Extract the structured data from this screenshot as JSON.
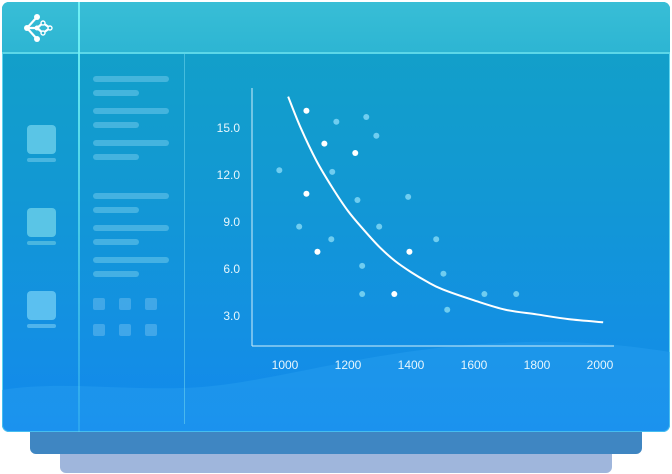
{
  "colors": {
    "accent": "#ffffff",
    "point_faint": "#6fcdf0",
    "header": "#35bcd5",
    "body": "#1399d4"
  },
  "sidebar": {
    "logo_icon": "network-nodes-icon",
    "items": [
      {
        "icon": "square-icon"
      },
      {
        "icon": "square-icon"
      },
      {
        "icon": "square-icon"
      }
    ]
  },
  "chart_data": {
    "type": "scatter",
    "title": "",
    "xlabel": "",
    "ylabel": "",
    "xlim": [
      920,
      2010
    ],
    "ylim": [
      0.8,
      17.5
    ],
    "x_ticks": [
      1000,
      1200,
      1400,
      1600,
      1800,
      2000
    ],
    "x_tick_labels": [
      "1000",
      "1200",
      "1400",
      "1600",
      "1800",
      "2000"
    ],
    "y_ticks": [
      3,
      6,
      9,
      12,
      15
    ],
    "y_tick_labels": [
      "3.0",
      "6.0",
      "9.0",
      "12.0",
      "15.0"
    ],
    "grid": false,
    "points": [
      {
        "x": 982,
        "y": 12.3,
        "highlight": false
      },
      {
        "x": 1068,
        "y": 16.1,
        "highlight": true
      },
      {
        "x": 1163,
        "y": 15.4,
        "highlight": false
      },
      {
        "x": 1258,
        "y": 15.7,
        "highlight": false
      },
      {
        "x": 1290,
        "y": 14.5,
        "highlight": false
      },
      {
        "x": 1125,
        "y": 14.0,
        "highlight": true
      },
      {
        "x": 1223,
        "y": 13.4,
        "highlight": true
      },
      {
        "x": 1150,
        "y": 12.2,
        "highlight": false
      },
      {
        "x": 1068,
        "y": 10.8,
        "highlight": true
      },
      {
        "x": 1230,
        "y": 10.4,
        "highlight": false
      },
      {
        "x": 1391,
        "y": 10.6,
        "highlight": false
      },
      {
        "x": 1045,
        "y": 8.7,
        "highlight": false
      },
      {
        "x": 1299,
        "y": 8.7,
        "highlight": false
      },
      {
        "x": 1147,
        "y": 7.9,
        "highlight": false
      },
      {
        "x": 1480,
        "y": 7.9,
        "highlight": false
      },
      {
        "x": 1103,
        "y": 7.1,
        "highlight": true
      },
      {
        "x": 1395,
        "y": 7.1,
        "highlight": true
      },
      {
        "x": 1245,
        "y": 6.2,
        "highlight": false
      },
      {
        "x": 1503,
        "y": 5.7,
        "highlight": false
      },
      {
        "x": 1245,
        "y": 4.4,
        "highlight": false
      },
      {
        "x": 1347,
        "y": 4.4,
        "highlight": true
      },
      {
        "x": 1633,
        "y": 4.4,
        "highlight": false
      },
      {
        "x": 1734,
        "y": 4.4,
        "highlight": false
      },
      {
        "x": 1515,
        "y": 3.4,
        "highlight": false
      }
    ],
    "trend_curve": [
      [
        1010,
        17.0
      ],
      [
        1050,
        15.0
      ],
      [
        1100,
        12.9
      ],
      [
        1150,
        11.2
      ],
      [
        1200,
        9.7
      ],
      [
        1250,
        8.5
      ],
      [
        1300,
        7.4
      ],
      [
        1350,
        6.5
      ],
      [
        1400,
        5.8
      ],
      [
        1450,
        5.2
      ],
      [
        1500,
        4.7
      ],
      [
        1600,
        4.0
      ],
      [
        1700,
        3.4
      ],
      [
        1800,
        3.1
      ],
      [
        1900,
        2.8
      ],
      [
        2010,
        2.6
      ]
    ]
  }
}
